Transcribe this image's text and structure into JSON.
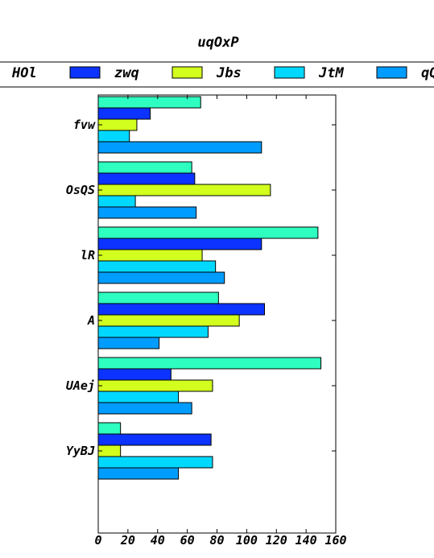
{
  "chart_data": {
    "type": "bar",
    "orientation": "horizontal",
    "title": "uqOxP",
    "categories": [
      "fvw",
      "OsQS",
      "lR",
      "A",
      "UAej",
      "YyBJ"
    ],
    "series": [
      {
        "name": "HOl",
        "color": "#2effc0",
        "values": [
          69,
          63,
          148,
          81,
          150,
          15
        ]
      },
      {
        "name": "zwq",
        "color": "#0c33ff",
        "values": [
          35,
          65,
          110,
          112,
          49,
          76
        ]
      },
      {
        "name": "Jbs",
        "color": "#d2ff1e",
        "values": [
          26,
          116,
          70,
          95,
          77,
          15
        ]
      },
      {
        "name": "JtM",
        "color": "#00d8ff",
        "values": [
          21,
          25,
          79,
          74,
          54,
          77
        ]
      },
      {
        "name": "qQ",
        "color": "#009cff",
        "values": [
          110,
          66,
          85,
          41,
          63,
          54
        ]
      }
    ],
    "xlim": [
      0,
      160
    ],
    "xticks": [
      0,
      20,
      40,
      60,
      80,
      100,
      120,
      140,
      160
    ],
    "legend_position": "top",
    "grid": false
  }
}
